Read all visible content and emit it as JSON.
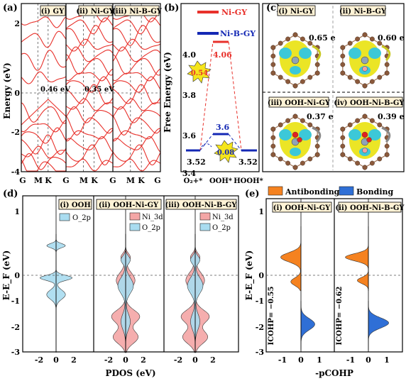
{
  "panels": {
    "a": {
      "label": "(a)",
      "ylabel": "Energy (eV)",
      "yticks": [
        "2",
        "0",
        "-2",
        "-4"
      ],
      "xticks": [
        "G",
        "M",
        "K",
        "G"
      ],
      "sub": [
        {
          "tag": "(i) GY",
          "gap": "0.46 eV"
        },
        {
          "tag": "(ii) Ni-GY",
          "gap": "0.35 eV"
        },
        {
          "tag": "(iii) Ni-B-GY",
          "gap": ""
        }
      ]
    },
    "b": {
      "label": "(b)",
      "ylabel": "Free Energy (eV)",
      "yticks": [
        "4.0",
        "3.8",
        "3.6",
        "3.4"
      ],
      "xticks": [
        "O₂+*",
        "OOH*",
        "HOOH*"
      ],
      "legend": [
        "Ni-GY",
        "Ni-B-GY"
      ],
      "annotations": {
        "ni_top": "4.06",
        "ni_barrier": "0.54",
        "nib_top": "3.6",
        "nib_barrier": "0.08",
        "left": "3.52",
        "right": "3.52"
      }
    },
    "c": {
      "label": "(c)",
      "sub": [
        {
          "tag": "(i) Ni-GY",
          "charge": "0.65 e"
        },
        {
          "tag": "(ii) Ni-B-GY",
          "charge": "0.60 e"
        },
        {
          "tag": "(iii) OOH-Ni-GY",
          "charge": "0.37 e"
        },
        {
          "tag": "(iv) OOH-Ni-B-GY",
          "charge": "0.39 e"
        }
      ]
    },
    "d": {
      "label": "(d)",
      "ylabel": "E-E_F (eV)",
      "yticks": [
        "1",
        "0",
        "-1",
        "-2",
        "-3"
      ],
      "xlabel": "PDOS (eV)",
      "xticks": [
        "-2",
        "0",
        "2"
      ],
      "sub": [
        {
          "tag": "(i) OOH",
          "legend": [
            "O_2p"
          ]
        },
        {
          "tag": "(ii) OOH-Ni-GY",
          "legend": [
            "Ni_3d",
            "O_2p"
          ]
        },
        {
          "tag": "(iii) OOH-Ni-B-GY",
          "legend": [
            "Ni_3d",
            "O_2p"
          ]
        }
      ]
    },
    "e": {
      "label": "(e)",
      "ylabel": "E-E_F (eV)",
      "yticks": [
        "1",
        "0",
        "-1",
        "-2",
        "-3"
      ],
      "xlabel": "-pCOHP",
      "xticks": [
        "-1",
        "0",
        "1"
      ],
      "legend": [
        "Antibonding",
        "Bonding"
      ],
      "sub": [
        {
          "tag": "(i) OOH-Ni-GY",
          "icohp": "ICOHP= −0.55"
        },
        {
          "tag": "(ii) OOH-Ni-B-GY",
          "icohp": "ICOHP= −0.62"
        }
      ]
    }
  },
  "colors": {
    "band": "#e8312b",
    "ni_line": "#e8312b",
    "nib_line": "#1428b4",
    "pdos_ni": "#f4a6a6",
    "pdos_o": "#a9dcf0",
    "antibonding": "#f58220",
    "bonding": "#2f6fd6",
    "cdd_yellow": "#e8e000",
    "cdd_cyan": "#3cc8d8",
    "atom_c": "#8b5a3c",
    "atom_ni": "#8fa3b8",
    "atom_b": "#f0a0a0",
    "atom_o": "#e22020"
  }
}
